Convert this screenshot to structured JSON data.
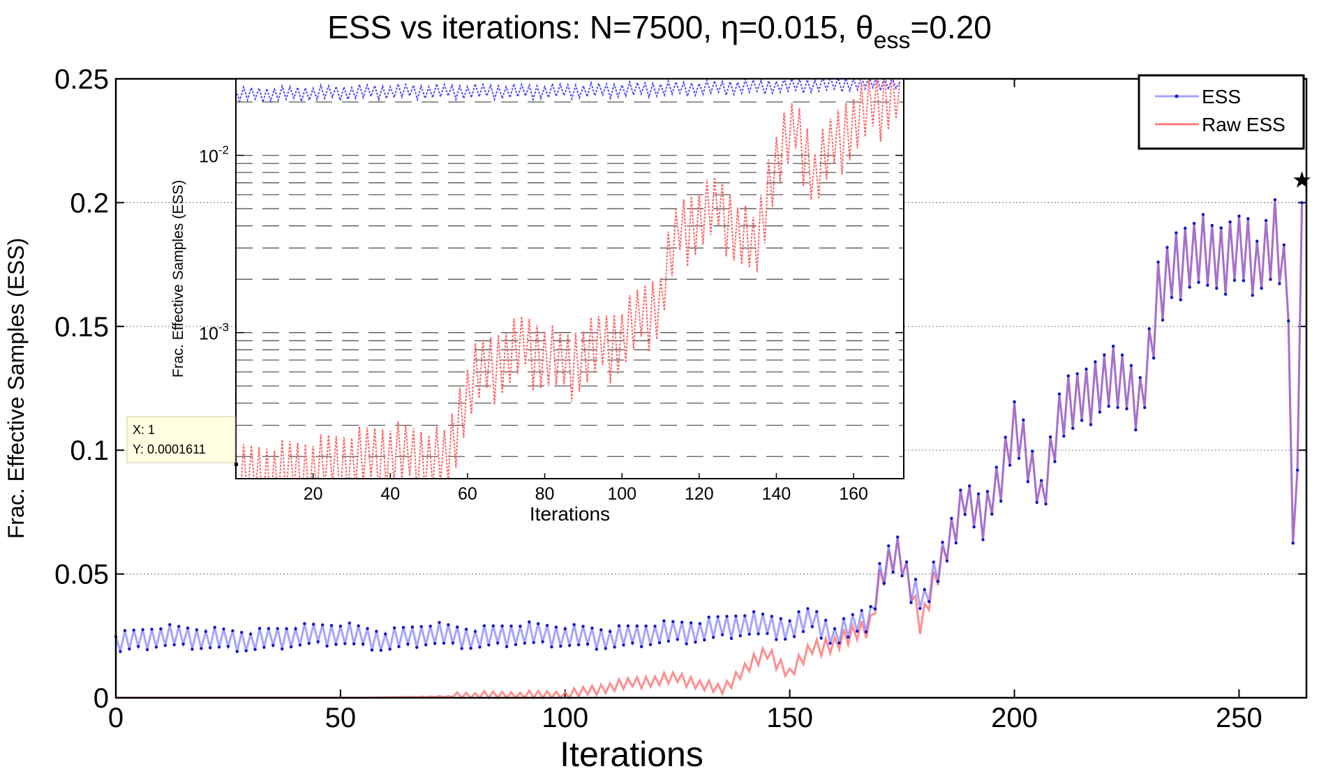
{
  "chart_data": [
    {
      "name": "main",
      "type": "line",
      "title_prefix": "ESS vs iterations: N=7500, ",
      "title_eta": "η=0.015, θ",
      "title_sub": "ess",
      "title_suffix": "=0.20",
      "xlabel": "Iterations",
      "ylabel": "Frac. Effective Samples (ESS)",
      "xlim": [
        0,
        265
      ],
      "ylim": [
        0,
        0.25
      ],
      "xticks": [
        0,
        50,
        100,
        150,
        200,
        250
      ],
      "yticks": [
        0,
        0.05,
        0.1,
        0.15,
        0.2,
        0.25
      ],
      "ytick_labels": [
        "0",
        "0.05",
        "0.1",
        "0.15",
        "0.2",
        "0.25"
      ],
      "grid": "horizontal dotted",
      "legend_position": "top-right",
      "series_generation": "values listed at control iterations; intermediate iterations zigzag between neighbours",
      "series": [
        {
          "name": "ESS",
          "color": "#5a5aff",
          "marker_color": "#1010d0",
          "points": [
            [
              0,
              0.022
            ],
            [
              10,
              0.025
            ],
            [
              20,
              0.024
            ],
            [
              30,
              0.023
            ],
            [
              40,
              0.025
            ],
            [
              50,
              0.026
            ],
            [
              60,
              0.023
            ],
            [
              70,
              0.026
            ],
            [
              80,
              0.024
            ],
            [
              90,
              0.026
            ],
            [
              100,
              0.025
            ],
            [
              110,
              0.024
            ],
            [
              120,
              0.026
            ],
            [
              130,
              0.027
            ],
            [
              140,
              0.03
            ],
            [
              150,
              0.028
            ],
            [
              155,
              0.032
            ],
            [
              160,
              0.025
            ],
            [
              165,
              0.03
            ],
            [
              168,
              0.033
            ],
            [
              170,
              0.05
            ],
            [
              174,
              0.058
            ],
            [
              177,
              0.045
            ],
            [
              180,
              0.04
            ],
            [
              185,
              0.06
            ],
            [
              189,
              0.083
            ],
            [
              193,
              0.07
            ],
            [
              197,
              0.09
            ],
            [
              200,
              0.112
            ],
            [
              203,
              0.095
            ],
            [
              206,
              0.08
            ],
            [
              210,
              0.115
            ],
            [
              215,
              0.12
            ],
            [
              220,
              0.13
            ],
            [
              225,
              0.125
            ],
            [
              228,
              0.12
            ],
            [
              232,
              0.16
            ],
            [
              236,
              0.175
            ],
            [
              240,
              0.182
            ],
            [
              245,
              0.175
            ],
            [
              250,
              0.185
            ],
            [
              254,
              0.17
            ],
            [
              258,
              0.19
            ],
            [
              261,
              0.165
            ],
            [
              262,
              0.055
            ],
            [
              263,
              0.1
            ],
            [
              264,
              0.2
            ]
          ]
        },
        {
          "name": "Raw ESS",
          "color": "#ff7a7a",
          "points": [
            [
              0,
              0.0
            ],
            [
              55,
              0.0
            ],
            [
              75,
              0.0005
            ],
            [
              100,
              0.001
            ],
            [
              115,
              0.006
            ],
            [
              125,
              0.008
            ],
            [
              135,
              0.003
            ],
            [
              140,
              0.012
            ],
            [
              145,
              0.018
            ],
            [
              150,
              0.01
            ],
            [
              155,
              0.02
            ],
            [
              160,
              0.022
            ],
            [
              165,
              0.026
            ],
            [
              168,
              0.03
            ],
            [
              170,
              0.048
            ],
            [
              174,
              0.058
            ],
            [
              177,
              0.045
            ],
            [
              179,
              0.03
            ],
            [
              182,
              0.045
            ],
            [
              185,
              0.06
            ],
            [
              189,
              0.083
            ],
            [
              193,
              0.07
            ],
            [
              197,
              0.09
            ],
            [
              200,
              0.112
            ],
            [
              203,
              0.095
            ],
            [
              206,
              0.08
            ],
            [
              210,
              0.115
            ],
            [
              215,
              0.12
            ],
            [
              220,
              0.13
            ],
            [
              225,
              0.125
            ],
            [
              228,
              0.12
            ],
            [
              232,
              0.16
            ],
            [
              236,
              0.175
            ],
            [
              240,
              0.182
            ],
            [
              245,
              0.175
            ],
            [
              250,
              0.185
            ],
            [
              254,
              0.17
            ],
            [
              258,
              0.19
            ],
            [
              261,
              0.165
            ],
            [
              262,
              0.055
            ],
            [
              263,
              0.1
            ],
            [
              264,
              0.2
            ]
          ]
        }
      ],
      "star_marker": [
        264,
        0.209
      ]
    },
    {
      "name": "inset",
      "type": "line",
      "xlabel": "Iterations",
      "ylabel": "Frac. Effective Samples (ESS)",
      "xscale": "linear",
      "yscale": "log",
      "xlim": [
        0,
        173
      ],
      "ylim": [
        0.00015,
        0.027
      ],
      "xticks": [
        20,
        40,
        60,
        80,
        100,
        120,
        140,
        160
      ],
      "yticks": [
        0.001,
        0.01
      ],
      "ytick_base": "10",
      "ytick_exponents": [
        "-3",
        "-2"
      ],
      "grid": "horizontal dashed",
      "series": [
        {
          "name": "ESS",
          "color": "#4a4aff",
          "points": [
            [
              0,
              0.022
            ],
            [
              40,
              0.023
            ],
            [
              80,
              0.023
            ],
            [
              120,
              0.024
            ],
            [
              150,
              0.025
            ],
            [
              172,
              0.026
            ]
          ]
        },
        {
          "name": "Raw ESS",
          "color": "#ff6060",
          "points": [
            [
              1,
              0.0001611
            ],
            [
              20,
              0.00018
            ],
            [
              40,
              0.00022
            ],
            [
              55,
              0.0002
            ],
            [
              62,
              0.0006
            ],
            [
              75,
              0.0009
            ],
            [
              85,
              0.0007
            ],
            [
              100,
              0.001
            ],
            [
              110,
              0.0016
            ],
            [
              115,
              0.004
            ],
            [
              125,
              0.0055
            ],
            [
              130,
              0.004
            ],
            [
              135,
              0.003
            ],
            [
              140,
              0.01
            ],
            [
              145,
              0.015
            ],
            [
              150,
              0.008
            ],
            [
              158,
              0.015
            ],
            [
              165,
              0.02
            ],
            [
              172,
              0.026
            ]
          ]
        }
      ],
      "datatip": {
        "x_label": "X: 1",
        "y_label": "Y: 0.0001611"
      }
    }
  ]
}
